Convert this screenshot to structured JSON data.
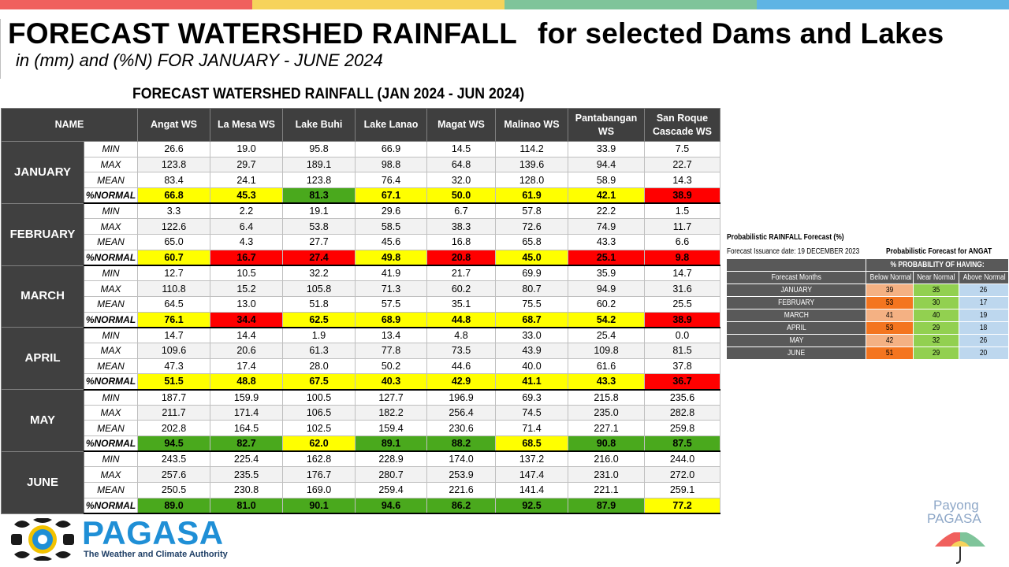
{
  "colors": {
    "top_bar": [
      "#f0605d",
      "#f6d35b",
      "#7fc49a",
      "#5fb4e4"
    ],
    "yellow": "#ffff00",
    "red": "#ff0000",
    "green": "#4aa91d",
    "below_normal": "#f4b183"
  },
  "header": {
    "title_part1": "FORECAST WATERSHED RAINFALL",
    "title_part2": "for selected Dams and Lakes",
    "subtitle": "in (mm) and (%N) FOR JANUARY - JUNE 2024"
  },
  "table": {
    "title": "FORECAST WATERSHED RAINFALL (JAN 2024 - JUN 2024)",
    "name_header": "NAME",
    "columns": [
      "Angat WS",
      "La Mesa WS",
      "Lake Buhi",
      "Lake Lanao",
      "Magat WS",
      "Malinao WS",
      "Pantabangan WS",
      "San Roque Cascade WS"
    ],
    "stat_labels": [
      "MIN",
      "MAX",
      "MEAN",
      "%NORMAL"
    ],
    "months": [
      {
        "name": "JANUARY",
        "min": [
          "26.6",
          "19.0",
          "95.8",
          "66.9",
          "14.5",
          "114.2",
          "33.9",
          "7.5"
        ],
        "max": [
          "123.8",
          "29.7",
          "189.1",
          "98.8",
          "64.8",
          "139.6",
          "94.4",
          "22.7"
        ],
        "mean": [
          "83.4",
          "24.1",
          "123.8",
          "76.4",
          "32.0",
          "128.0",
          "58.9",
          "14.3"
        ],
        "pct": [
          "66.8",
          "45.3",
          "81.3",
          "67.1",
          "50.0",
          "61.9",
          "42.1",
          "38.9"
        ],
        "pct_colors": [
          "yellow",
          "yellow",
          "green",
          "yellow",
          "yellow",
          "yellow",
          "yellow",
          "red"
        ]
      },
      {
        "name": "FEBRUARY",
        "min": [
          "3.3",
          "2.2",
          "19.1",
          "29.6",
          "6.7",
          "57.8",
          "22.2",
          "1.5"
        ],
        "max": [
          "122.6",
          "6.4",
          "53.8",
          "58.5",
          "38.3",
          "72.6",
          "74.9",
          "11.7"
        ],
        "mean": [
          "65.0",
          "4.3",
          "27.7",
          "45.6",
          "16.8",
          "65.8",
          "43.3",
          "6.6"
        ],
        "pct": [
          "60.7",
          "16.7",
          "27.4",
          "49.8",
          "20.8",
          "45.0",
          "25.1",
          "9.8"
        ],
        "pct_colors": [
          "yellow",
          "red",
          "red",
          "yellow",
          "red",
          "yellow",
          "red",
          "red"
        ]
      },
      {
        "name": "MARCH",
        "min": [
          "12.7",
          "10.5",
          "32.2",
          "41.9",
          "21.7",
          "69.9",
          "35.9",
          "14.7"
        ],
        "max": [
          "110.8",
          "15.2",
          "105.8",
          "71.3",
          "60.2",
          "80.7",
          "94.9",
          "31.6"
        ],
        "mean": [
          "64.5",
          "13.0",
          "51.8",
          "57.5",
          "35.1",
          "75.5",
          "60.2",
          "25.5"
        ],
        "pct": [
          "76.1",
          "34.4",
          "62.5",
          "68.9",
          "44.8",
          "68.7",
          "54.2",
          "38.9"
        ],
        "pct_colors": [
          "yellow",
          "red",
          "yellow",
          "yellow",
          "yellow",
          "yellow",
          "yellow",
          "red"
        ]
      },
      {
        "name": "APRIL",
        "min": [
          "14.7",
          "14.4",
          "1.9",
          "13.4",
          "4.8",
          "33.0",
          "25.4",
          "0.0"
        ],
        "max": [
          "109.6",
          "20.6",
          "61.3",
          "77.8",
          "73.5",
          "43.9",
          "109.8",
          "81.5"
        ],
        "mean": [
          "47.3",
          "17.4",
          "28.0",
          "50.2",
          "44.6",
          "40.0",
          "61.6",
          "37.8"
        ],
        "pct": [
          "51.5",
          "48.8",
          "67.5",
          "40.3",
          "42.9",
          "41.1",
          "43.3",
          "36.7"
        ],
        "pct_colors": [
          "yellow",
          "yellow",
          "yellow",
          "yellow",
          "yellow",
          "yellow",
          "yellow",
          "red"
        ]
      },
      {
        "name": "MAY",
        "min": [
          "187.7",
          "159.9",
          "100.5",
          "127.7",
          "196.9",
          "69.3",
          "215.8",
          "235.6"
        ],
        "max": [
          "211.7",
          "171.4",
          "106.5",
          "182.2",
          "256.4",
          "74.5",
          "235.0",
          "282.8"
        ],
        "mean": [
          "202.8",
          "164.5",
          "102.5",
          "159.4",
          "230.6",
          "71.4",
          "227.1",
          "259.8"
        ],
        "pct": [
          "94.5",
          "82.7",
          "62.0",
          "89.1",
          "88.2",
          "68.5",
          "90.8",
          "87.5"
        ],
        "pct_colors": [
          "green",
          "green",
          "yellow",
          "green",
          "green",
          "yellow",
          "green",
          "green"
        ]
      },
      {
        "name": "JUNE",
        "min": [
          "243.5",
          "225.4",
          "162.8",
          "228.9",
          "174.0",
          "137.2",
          "216.0",
          "244.0"
        ],
        "max": [
          "257.6",
          "235.5",
          "176.7",
          "280.7",
          "253.9",
          "147.4",
          "231.0",
          "272.0"
        ],
        "mean": [
          "250.5",
          "230.8",
          "169.0",
          "259.4",
          "221.6",
          "141.4",
          "221.1",
          "259.1"
        ],
        "pct": [
          "89.0",
          "81.0",
          "90.1",
          "94.6",
          "86.2",
          "92.5",
          "87.9",
          "77.2"
        ],
        "pct_colors": [
          "green",
          "green",
          "green",
          "green",
          "green",
          "green",
          "green",
          "yellow"
        ]
      }
    ]
  },
  "probabilistic": {
    "title": "Probabilistic RAINFALL Forecast (%)",
    "issuance": "Forecast Issuance date: 19 DECEMBER 2023",
    "forecast_for": "Probabilistic Forecast for ANGAT",
    "group_header": "% PROBABILITY OF HAVING:",
    "col_months": "Forecast Months",
    "col_below": "Below Normal",
    "col_near": "Near Normal",
    "col_above": "Above Normal",
    "rows": [
      {
        "month": "JANUARY",
        "below": "39",
        "near": "35",
        "above": "26",
        "below_shade": "light"
      },
      {
        "month": "FEBRUARY",
        "below": "53",
        "near": "30",
        "above": "17",
        "below_shade": "dark"
      },
      {
        "month": "MARCH",
        "below": "41",
        "near": "40",
        "above": "19",
        "below_shade": "light"
      },
      {
        "month": "APRIL",
        "below": "53",
        "near": "29",
        "above": "18",
        "below_shade": "dark"
      },
      {
        "month": "MAY",
        "below": "42",
        "near": "32",
        "above": "26",
        "below_shade": "light"
      },
      {
        "month": "JUNE",
        "below": "51",
        "near": "29",
        "above": "20",
        "below_shade": "dark"
      }
    ]
  },
  "logo": {
    "name": "PAGASA",
    "tagline": "The Weather and Climate Authority"
  },
  "payong": {
    "line1": "Payong",
    "line2": "PAGASA"
  }
}
